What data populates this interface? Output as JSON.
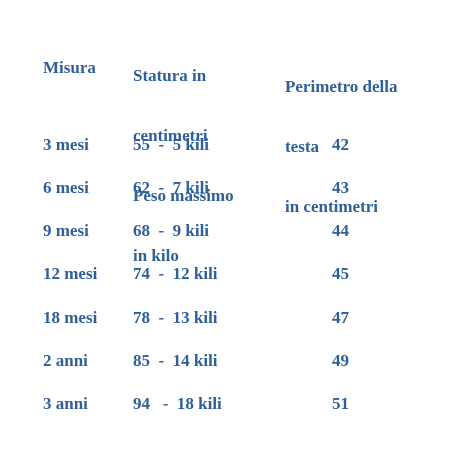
{
  "table": {
    "headers": {
      "misura": "Misura",
      "statura_lines": [
        "Statura in",
        "centimetri",
        "Peso massimo",
        "in kilo"
      ],
      "perimetro_lines": [
        "Perimetro della",
        "testa",
        "in centimetri"
      ]
    },
    "rows": [
      {
        "misura": "3 mesi",
        "statura_peso": "55  -  5 kili",
        "perimetro": "42"
      },
      {
        "misura": "6 mesi",
        "statura_peso": "62  -  7 kili",
        "perimetro": "43"
      },
      {
        "misura": "9 mesi",
        "statura_peso": "68  -  9 kili",
        "perimetro": "44"
      },
      {
        "misura": "12 mesi",
        "statura_peso": "74  -  12 kili",
        "perimetro": "45"
      },
      {
        "misura": "18 mesi",
        "statura_peso": "78  -  13 kili",
        "perimetro": "47"
      },
      {
        "misura": "2 anni",
        "statura_peso": "85  -  14 kili",
        "perimetro": "49"
      },
      {
        "misura": "3 anni",
        "statura_peso": "94   -  18 kili",
        "perimetro": "51"
      }
    ]
  },
  "colors": {
    "text": "#2e5f98",
    "background": "#ffffff"
  }
}
